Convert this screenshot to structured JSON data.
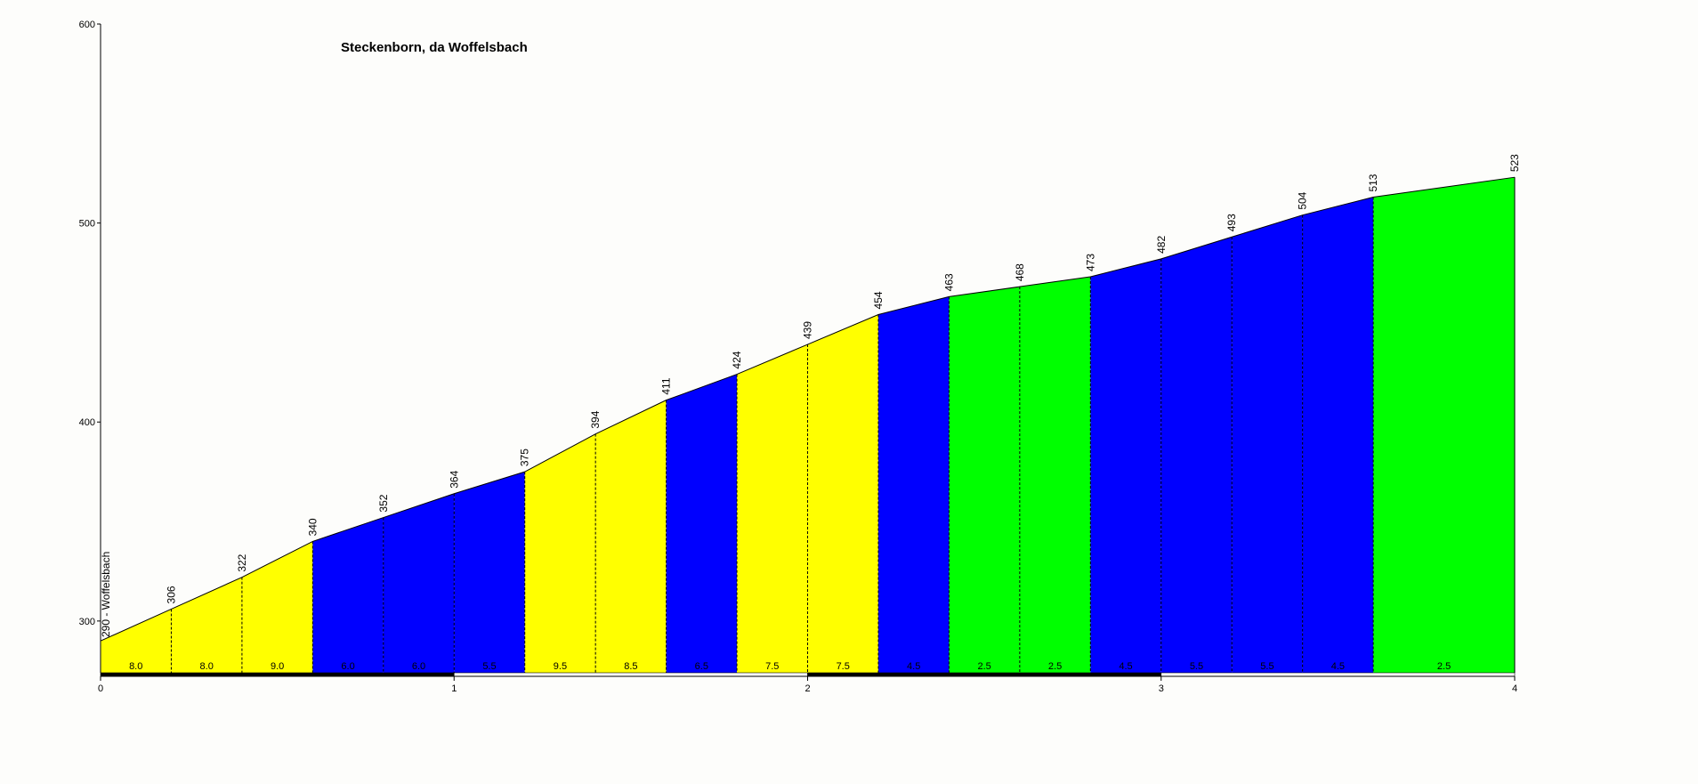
{
  "chart_data": {
    "type": "area",
    "title": "Steckenborn, da Woffelsbach",
    "xlabel": "",
    "ylabel": "",
    "xlim": [
      0,
      4
    ],
    "ylim": [
      274,
      600
    ],
    "x_ticks": [
      0,
      1,
      2,
      3,
      4
    ],
    "y_ticks": [
      300,
      400,
      500,
      600
    ],
    "grid": false,
    "start_label": "290 - Woffelsbach",
    "points": [
      {
        "x": 0.0,
        "y": 290
      },
      {
        "x": 0.2,
        "y": 306
      },
      {
        "x": 0.4,
        "y": 322
      },
      {
        "x": 0.6,
        "y": 340
      },
      {
        "x": 0.8,
        "y": 352
      },
      {
        "x": 1.0,
        "y": 364
      },
      {
        "x": 1.2,
        "y": 375
      },
      {
        "x": 1.4,
        "y": 394
      },
      {
        "x": 1.6,
        "y": 411
      },
      {
        "x": 1.8,
        "y": 424
      },
      {
        "x": 2.0,
        "y": 439
      },
      {
        "x": 2.2,
        "y": 454
      },
      {
        "x": 2.4,
        "y": 463
      },
      {
        "x": 2.6,
        "y": 468
      },
      {
        "x": 2.8,
        "y": 473
      },
      {
        "x": 3.0,
        "y": 482
      },
      {
        "x": 3.2,
        "y": 493
      },
      {
        "x": 3.4,
        "y": 504
      },
      {
        "x": 3.6,
        "y": 513
      },
      {
        "x": 4.0,
        "y": 523
      }
    ],
    "gradients": [
      "8.0",
      "8.0",
      "9.0",
      "6.0",
      "6.0",
      "5.5",
      "9.5",
      "8.5",
      "6.5",
      "7.5",
      "7.5",
      "4.5",
      "2.5",
      "2.5",
      "4.5",
      "5.5",
      "5.5",
      "4.5",
      "2.5"
    ],
    "segment_colors": [
      "#ffff00",
      "#ffff00",
      "#ffff00",
      "#0000ff",
      "#0000ff",
      "#0000ff",
      "#ffff00",
      "#ffff00",
      "#0000ff",
      "#ffff00",
      "#ffff00",
      "#0000ff",
      "#00ff00",
      "#00ff00",
      "#0000ff",
      "#0000ff",
      "#0000ff",
      "#0000ff",
      "#00ff00"
    ],
    "km_bar_colors": [
      "#000000",
      "#ffffff",
      "#000000",
      "#ffffff"
    ]
  }
}
